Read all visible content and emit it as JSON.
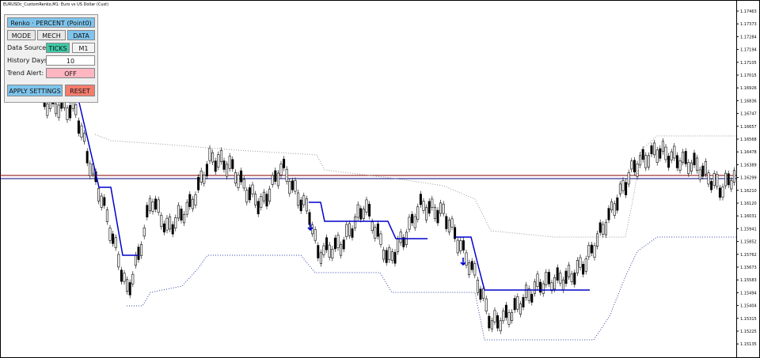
{
  "window_title": "EURUSDc_CustomRenko,M1: Euro vs US Dollar (Cust)",
  "panel": {
    "title": "Renko · PERCENT (Point0) ▲",
    "tabs": [
      "MODE",
      "MECH",
      "DATA"
    ],
    "data_source": {
      "label": "Data Source:",
      "options": [
        "TICKS",
        "M1"
      ]
    },
    "history_days": {
      "label": "History Days:",
      "value": 10
    },
    "trend_alert": {
      "label": "Trend Alert:",
      "value": "OFF"
    },
    "buttons": [
      "APPLY SETTINGS",
      "RESET"
    ]
  },
  "price_axis": [
    "1.17463",
    "1.17373",
    "1.17284",
    "1.17194",
    "1.17105",
    "1.17015",
    "1.16926",
    "1.16836",
    "1.16747",
    "1.16657",
    "1.16568",
    "1.16478",
    "1.16389",
    "1.16299",
    "1.16210",
    "1.16120",
    "1.16031",
    "1.15941",
    "1.15852",
    "1.15762",
    "1.15673",
    "1.15583",
    "1.15494",
    "1.15404",
    "1.15315",
    "1.15225",
    "1.15135"
  ]
}
